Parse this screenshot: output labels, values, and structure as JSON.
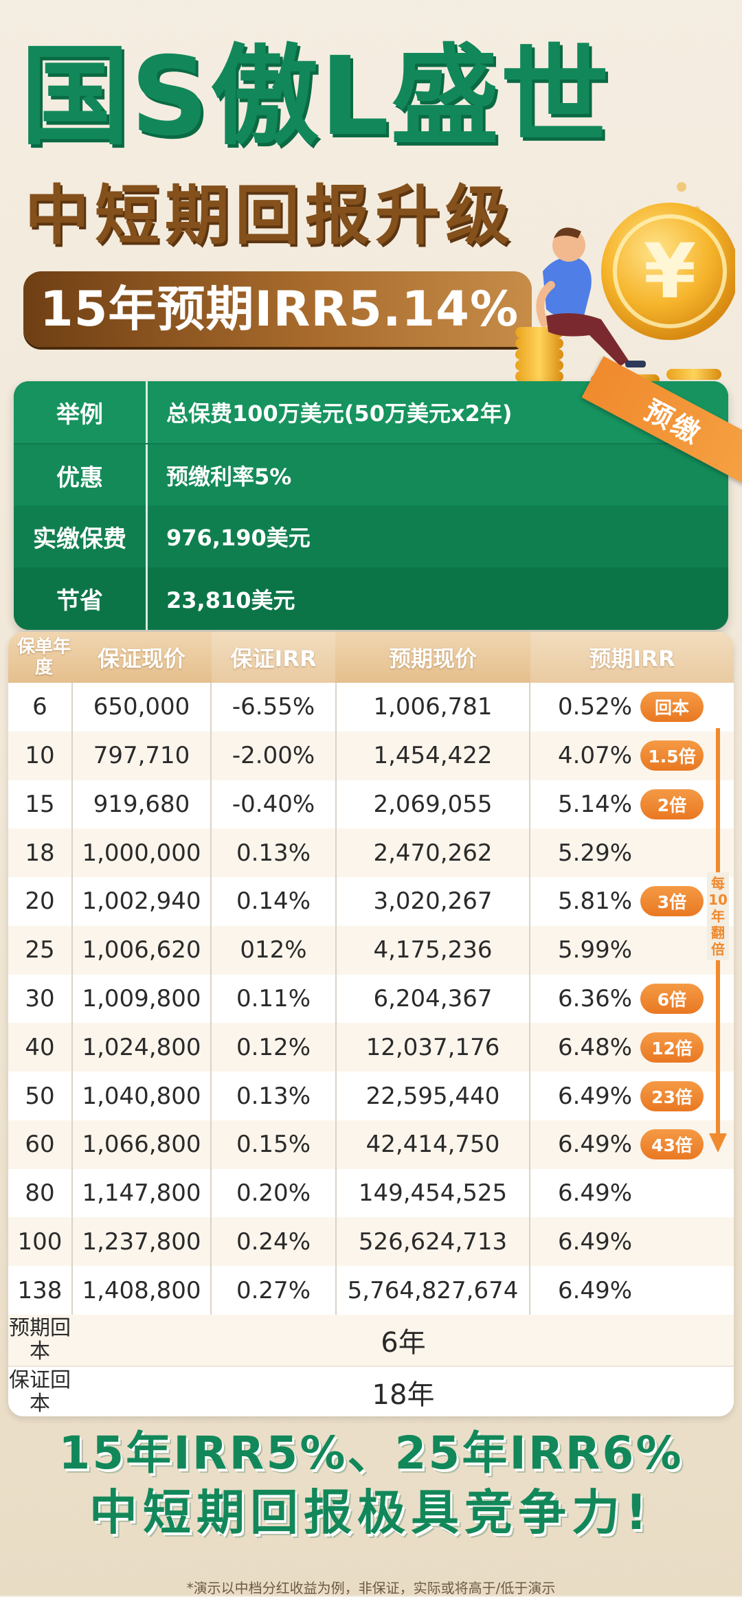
{
  "header": {
    "title": "国S傲L盛世",
    "subtitle": "中短期回报升级",
    "irr_highlight": "15年预期IRR5.14%"
  },
  "ribbon": "预缴",
  "info": [
    {
      "label": "举例",
      "value": "总保费100万美元(50万美元x2年)"
    },
    {
      "label": "优惠",
      "value": "预缴利率5%"
    },
    {
      "label": "实缴保费",
      "value": "976,190美元"
    },
    {
      "label": "节省",
      "value": "23,810美元"
    }
  ],
  "table": {
    "headers": [
      "保单年度",
      "保证现价",
      "保证IRR",
      "预期现价",
      "预期IRR"
    ],
    "rows": [
      {
        "year": "6",
        "guaranteed_value": "650,000",
        "guaranteed_irr": "-6.55%",
        "expected_value": "1,006,781",
        "expected_irr": "0.52%",
        "badge": "回本"
      },
      {
        "year": "10",
        "guaranteed_value": "797,710",
        "guaranteed_irr": "-2.00%",
        "expected_value": "1,454,422",
        "expected_irr": "4.07%",
        "badge": "1.5倍"
      },
      {
        "year": "15",
        "guaranteed_value": "919,680",
        "guaranteed_irr": "-0.40%",
        "expected_value": "2,069,055",
        "expected_irr": "5.14%",
        "badge": "2倍"
      },
      {
        "year": "18",
        "guaranteed_value": "1,000,000",
        "guaranteed_irr": "0.13%",
        "expected_value": "2,470,262",
        "expected_irr": "5.29%",
        "badge": ""
      },
      {
        "year": "20",
        "guaranteed_value": "1,002,940",
        "guaranteed_irr": "0.14%",
        "expected_value": "3,020,267",
        "expected_irr": "5.81%",
        "badge": "3倍"
      },
      {
        "year": "25",
        "guaranteed_value": "1,006,620",
        "guaranteed_irr": "012%",
        "expected_value": "4,175,236",
        "expected_irr": "5.99%",
        "badge": ""
      },
      {
        "year": "30",
        "guaranteed_value": "1,009,800",
        "guaranteed_irr": "0.11%",
        "expected_value": "6,204,367",
        "expected_irr": "6.36%",
        "badge": "6倍"
      },
      {
        "year": "40",
        "guaranteed_value": "1,024,800",
        "guaranteed_irr": "0.12%",
        "expected_value": "12,037,176",
        "expected_irr": "6.48%",
        "badge": "12倍"
      },
      {
        "year": "50",
        "guaranteed_value": "1,040,800",
        "guaranteed_irr": "0.13%",
        "expected_value": "22,595,440",
        "expected_irr": "6.49%",
        "badge": "23倍"
      },
      {
        "year": "60",
        "guaranteed_value": "1,066,800",
        "guaranteed_irr": "0.15%",
        "expected_value": "42,414,750",
        "expected_irr": "6.49%",
        "badge": "43倍"
      },
      {
        "year": "80",
        "guaranteed_value": "1,147,800",
        "guaranteed_irr": "0.20%",
        "expected_value": "149,454,525",
        "expected_irr": "6.49%",
        "badge": ""
      },
      {
        "year": "100",
        "guaranteed_value": "1,237,800",
        "guaranteed_irr": "0.24%",
        "expected_value": "526,624,713",
        "expected_irr": "6.49%",
        "badge": ""
      },
      {
        "year": "138",
        "guaranteed_value": "1,408,800",
        "guaranteed_irr": "0.27%",
        "expected_value": "5,764,827,674",
        "expected_irr": "6.49%",
        "badge": ""
      }
    ],
    "footer": [
      {
        "label": "预期回本",
        "value": "6年"
      },
      {
        "label": "保证回本",
        "value": "18年"
      }
    ]
  },
  "side_note": "每10年翻倍",
  "bottom": {
    "line1": "15年IRR5%、25年IRR6%",
    "line2": "中短期回报极具竞争力!",
    "disclaimer": "*演示以中档分红收益为例，非保证，实际或将高于/低于演示"
  },
  "colors": {
    "brand_green": "#12885a",
    "brown": "#84501b",
    "accent_orange": "#ef8a2e",
    "header_gold": "#e5bf8d"
  }
}
